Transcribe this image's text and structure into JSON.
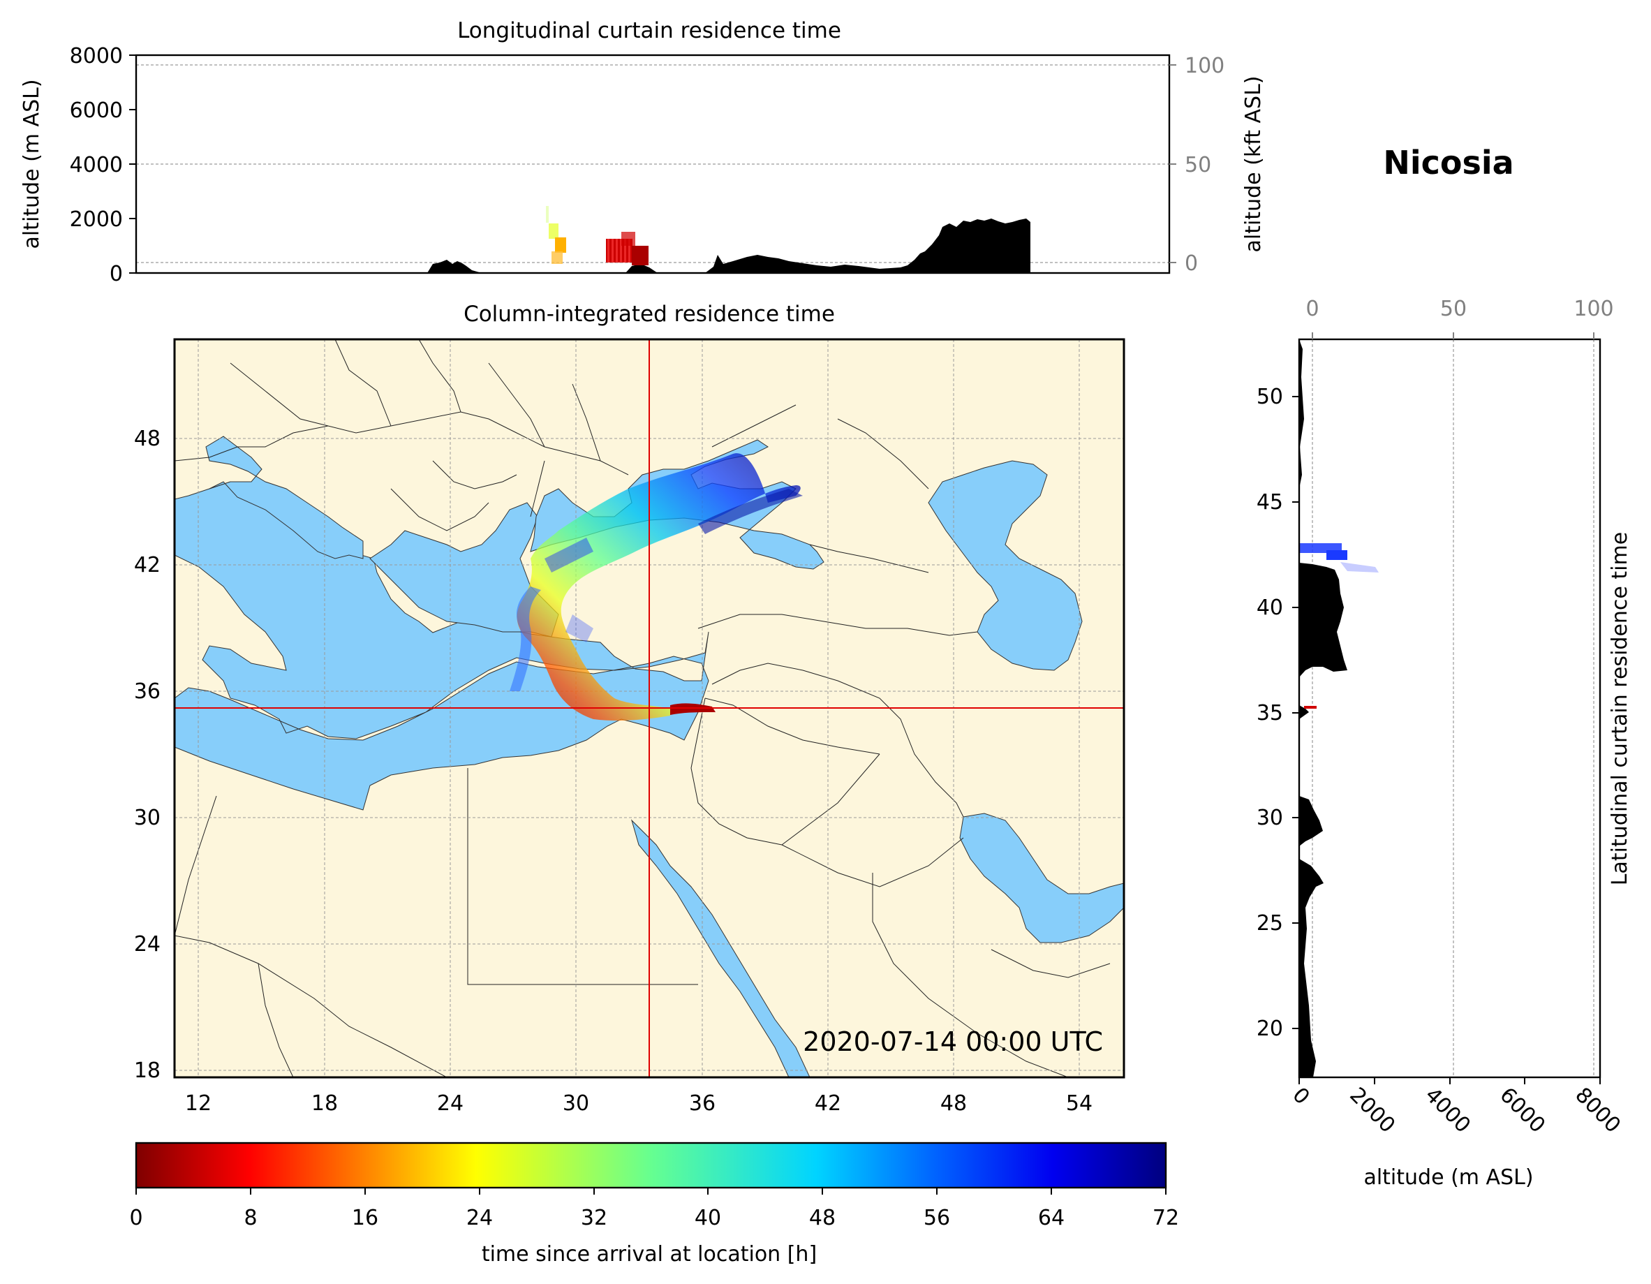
{
  "station": "Nicosia",
  "timestamp": "2020-07-14 00:00 UTC",
  "colors": {
    "land": "#fdf6dc",
    "sea": "#87cefa",
    "terrain": "#000000",
    "crosshair": "#e00000",
    "grid": "#9a9a9a"
  },
  "longitudinal_panel": {
    "title": "Longitudinal curtain residence time",
    "ylabel": "altitude (m ASL)",
    "ylabel_right": "altitude (kft ASL)",
    "yticks": [
      "0",
      "2000",
      "4000",
      "6000",
      "8000"
    ],
    "yticks_right": [
      "0",
      "50",
      "100"
    ]
  },
  "map_panel": {
    "title": "Column-integrated residence time",
    "lat_ticks": [
      "18",
      "24",
      "30",
      "36",
      "42",
      "48"
    ],
    "lon_ticks": [
      "12",
      "18",
      "24",
      "30",
      "36",
      "42",
      "48",
      "54"
    ],
    "crosshair": {
      "lon": 33.4,
      "lat": 35.2
    }
  },
  "latitudinal_panel": {
    "title": "Latitudinal curtain residence time",
    "xlabel": "altitude (m ASL)",
    "xticks": [
      "0",
      "2000",
      "4000",
      "6000",
      "8000"
    ],
    "xticks_top": [
      "0",
      "50",
      "100"
    ],
    "yticks": [
      "20",
      "25",
      "30",
      "35",
      "40",
      "45",
      "50"
    ]
  },
  "colorbar": {
    "label": "time since arrival at location [h]",
    "ticks": [
      "0",
      "8",
      "16",
      "24",
      "32",
      "40",
      "48",
      "56",
      "64",
      "72"
    ],
    "range": [
      0,
      72
    ],
    "colormap": "jet_r"
  }
}
